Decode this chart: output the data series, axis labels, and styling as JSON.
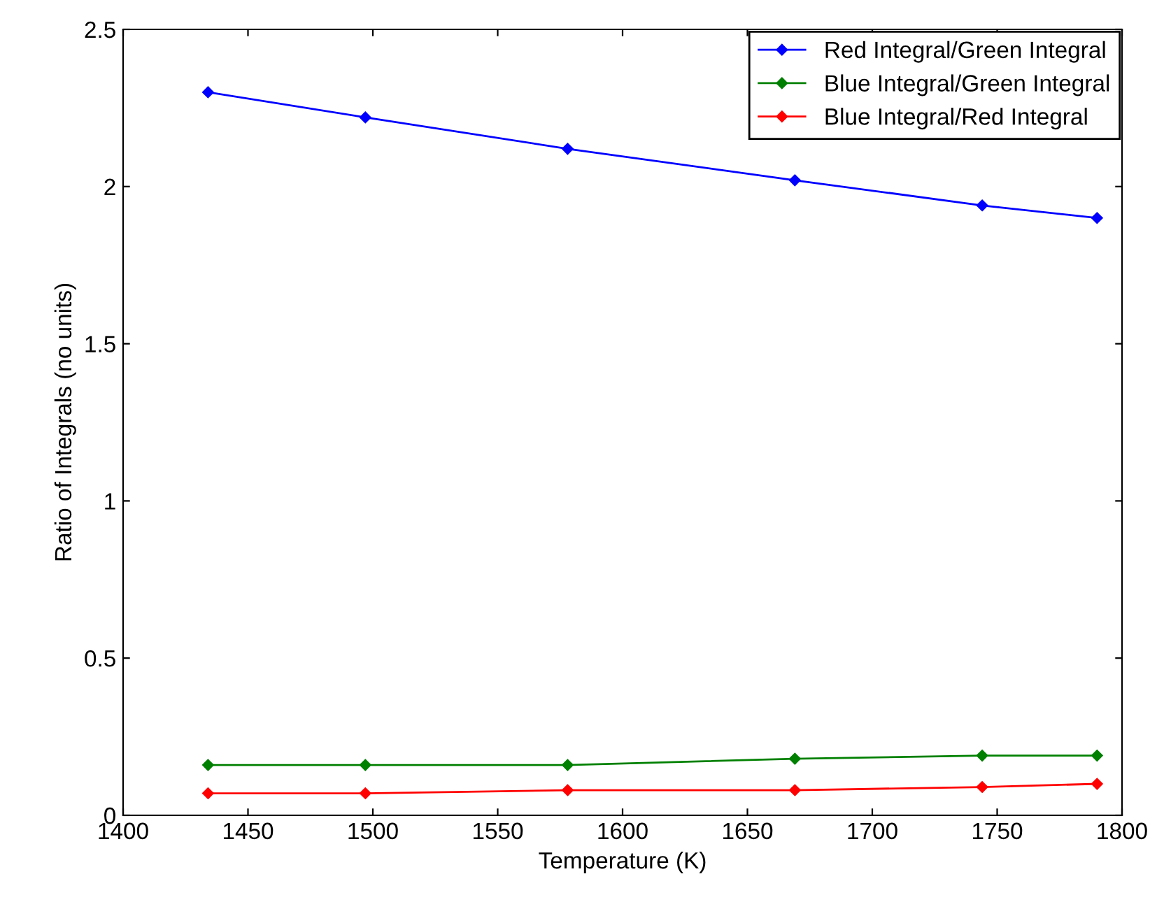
{
  "chart_data": {
    "type": "line",
    "xlabel": "Temperature (K)",
    "ylabel": "Ratio of Integrals (no units)",
    "x": [
      1434,
      1497,
      1578,
      1669,
      1744,
      1790
    ],
    "series": [
      {
        "name": "Red Integral/Green Integral",
        "color": "#0000ff",
        "values": [
          2.3,
          2.22,
          2.12,
          2.02,
          1.94,
          1.9
        ]
      },
      {
        "name": "Blue Integral/Green Integral",
        "color": "#008000",
        "values": [
          0.16,
          0.16,
          0.16,
          0.18,
          0.19,
          0.19
        ]
      },
      {
        "name": "Blue Integral/Red Integral",
        "color": "#ff0000",
        "values": [
          0.07,
          0.07,
          0.08,
          0.08,
          0.09,
          0.1
        ]
      }
    ],
    "xlim": [
      1400,
      1800
    ],
    "xticks": [
      1400,
      1450,
      1500,
      1550,
      1600,
      1650,
      1700,
      1750,
      1800
    ],
    "ylim": [
      0,
      2.5
    ],
    "yticks": [
      0,
      0.5,
      1,
      1.5,
      2,
      2.5
    ],
    "grid": false,
    "legend": "top right",
    "marker": "diamond",
    "line_style": "solid"
  }
}
